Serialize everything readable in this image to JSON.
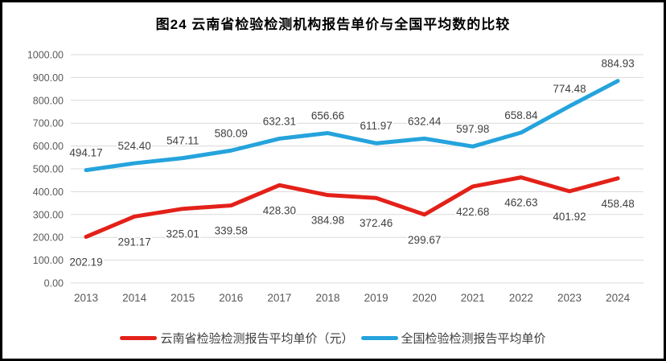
{
  "page": {
    "background": "#ffffff",
    "frame_border_color": "#000000"
  },
  "chart_data": {
    "type": "line",
    "title": "图24 云南省检验检测机构报告单价与全国平均数的比较",
    "categories": [
      "2013",
      "2014",
      "2015",
      "2016",
      "2017",
      "2018",
      "2019",
      "2020",
      "2021",
      "2022",
      "2023",
      "2024"
    ],
    "series": [
      {
        "name": "云南省检验检测报告平均单价（元）",
        "color": "#e32119",
        "label_position": "below",
        "values": [
          202.19,
          291.17,
          325.01,
          339.58,
          428.3,
          384.98,
          372.46,
          299.67,
          422.68,
          462.63,
          401.92,
          458.48
        ]
      },
      {
        "name": "全国检验检测报告平均单价",
        "color": "#25a3dc",
        "label_position": "above",
        "values": [
          494.17,
          524.4,
          547.11,
          580.09,
          632.31,
          656.66,
          611.97,
          632.44,
          597.98,
          658.84,
          774.48,
          884.93
        ]
      }
    ],
    "ylim": [
      0,
      1000
    ],
    "y_ticks": [
      "0.00",
      "100.00",
      "200.00",
      "300.00",
      "400.00",
      "500.00",
      "600.00",
      "700.00",
      "800.00",
      "900.00",
      "1000.00"
    ],
    "xlabel": "",
    "ylabel": "",
    "grid": true,
    "grid_color": "#d9d9d9",
    "axis_text_color": "#595959",
    "data_label_color": "#3f3f3f",
    "legend_position": "bottom"
  }
}
